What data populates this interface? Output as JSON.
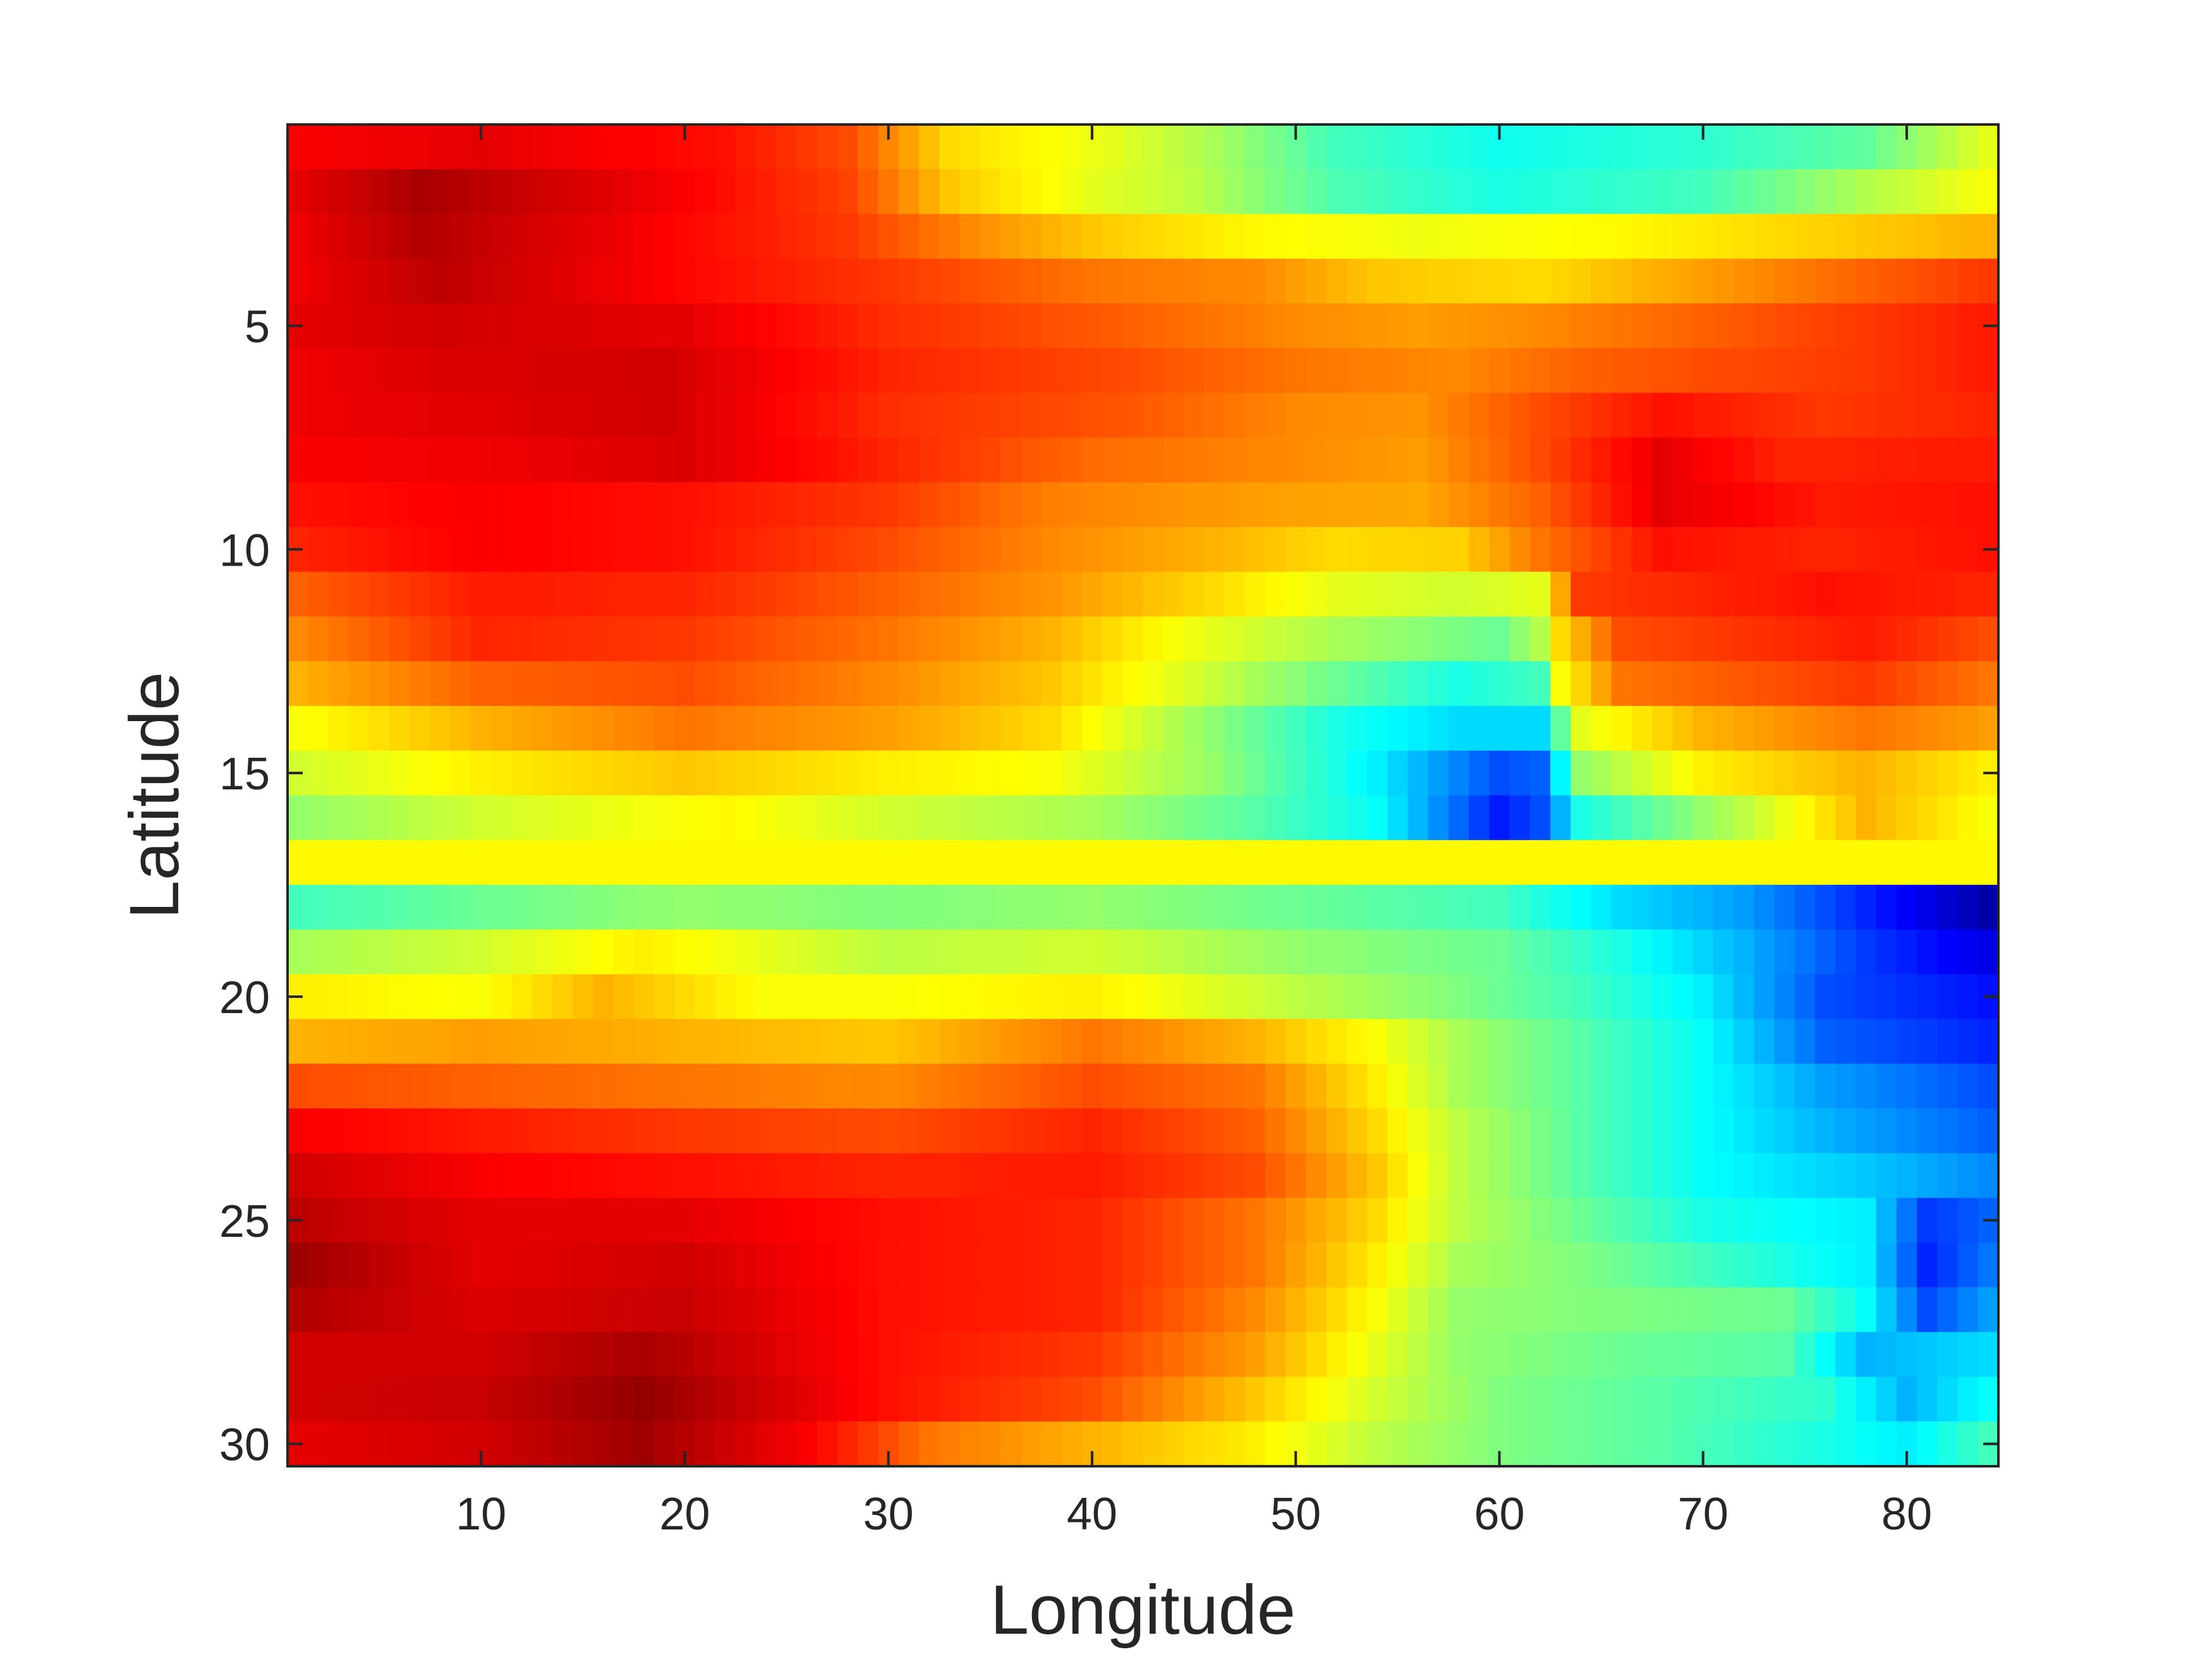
{
  "chart_data": {
    "type": "heatmap",
    "title": "",
    "xlabel": "Longitude",
    "ylabel": "Latitude",
    "x_range": [
      1,
      84
    ],
    "y_range": [
      1,
      30
    ],
    "xlim": [
      0.5,
      84.5
    ],
    "ylim": [
      0.5,
      30.5
    ],
    "y_direction": "reversed (1 at top, 30 at bottom)",
    "x_ticks": [
      10,
      20,
      30,
      40,
      50,
      60,
      70,
      80
    ],
    "y_ticks": [
      5,
      10,
      15,
      20,
      25,
      30
    ],
    "colormap": "jet",
    "value_range": [
      0,
      1
    ],
    "colorbar": false,
    "grid": false,
    "row_profiles": [
      [
        [
          1,
          0.88
        ],
        [
          10,
          0.9
        ],
        [
          22,
          0.86
        ],
        [
          28,
          0.8
        ],
        [
          33,
          0.66
        ],
        [
          41,
          0.6
        ],
        [
          46,
          0.54
        ],
        [
          52,
          0.44
        ],
        [
          60,
          0.39
        ],
        [
          70,
          0.42
        ],
        [
          78,
          0.47
        ],
        [
          84,
          0.6
        ]
      ],
      [
        [
          1,
          0.9
        ],
        [
          7,
          0.96
        ],
        [
          20,
          0.88
        ],
        [
          28,
          0.81
        ],
        [
          33,
          0.68
        ],
        [
          40,
          0.6
        ],
        [
          45,
          0.56
        ],
        [
          52,
          0.45
        ],
        [
          60,
          0.4
        ],
        [
          70,
          0.44
        ],
        [
          78,
          0.55
        ],
        [
          84,
          0.62
        ]
      ],
      [
        [
          1,
          0.89
        ],
        [
          7,
          0.95
        ],
        [
          20,
          0.87
        ],
        [
          28,
          0.82
        ],
        [
          34,
          0.74
        ],
        [
          40,
          0.68
        ],
        [
          48,
          0.63
        ],
        [
          56,
          0.61
        ],
        [
          66,
          0.63
        ],
        [
          76,
          0.67
        ],
        [
          84,
          0.7
        ]
      ],
      [
        [
          1,
          0.89
        ],
        [
          8,
          0.94
        ],
        [
          20,
          0.87
        ],
        [
          30,
          0.82
        ],
        [
          40,
          0.76
        ],
        [
          48,
          0.74
        ],
        [
          54,
          0.68
        ],
        [
          62,
          0.66
        ],
        [
          70,
          0.72
        ],
        [
          78,
          0.78
        ],
        [
          84,
          0.82
        ]
      ],
      [
        [
          1,
          0.9
        ],
        [
          8,
          0.92
        ],
        [
          20,
          0.9
        ],
        [
          30,
          0.83
        ],
        [
          40,
          0.79
        ],
        [
          50,
          0.74
        ],
        [
          56,
          0.72
        ],
        [
          62,
          0.74
        ],
        [
          70,
          0.78
        ],
        [
          78,
          0.82
        ],
        [
          84,
          0.85
        ]
      ],
      [
        [
          1,
          0.89
        ],
        [
          8,
          0.91
        ],
        [
          19,
          0.92
        ],
        [
          30,
          0.84
        ],
        [
          42,
          0.8
        ],
        [
          50,
          0.76
        ],
        [
          58,
          0.74
        ],
        [
          64,
          0.78
        ],
        [
          70,
          0.8
        ],
        [
          78,
          0.82
        ],
        [
          84,
          0.85
        ]
      ],
      [
        [
          1,
          0.89
        ],
        [
          8,
          0.9
        ],
        [
          19,
          0.92
        ],
        [
          30,
          0.83
        ],
        [
          42,
          0.79
        ],
        [
          50,
          0.74
        ],
        [
          56,
          0.73
        ],
        [
          62,
          0.8
        ],
        [
          68,
          0.86
        ],
        [
          76,
          0.82
        ],
        [
          84,
          0.84
        ]
      ],
      [
        [
          1,
          0.88
        ],
        [
          10,
          0.89
        ],
        [
          20,
          0.91
        ],
        [
          30,
          0.84
        ],
        [
          40,
          0.77
        ],
        [
          50,
          0.74
        ],
        [
          56,
          0.72
        ],
        [
          62,
          0.8
        ],
        [
          68,
          0.9
        ],
        [
          74,
          0.84
        ],
        [
          84,
          0.85
        ]
      ],
      [
        [
          1,
          0.86
        ],
        [
          10,
          0.88
        ],
        [
          20,
          0.86
        ],
        [
          30,
          0.82
        ],
        [
          38,
          0.75
        ],
        [
          48,
          0.72
        ],
        [
          56,
          0.71
        ],
        [
          62,
          0.78
        ],
        [
          68,
          0.9
        ],
        [
          76,
          0.85
        ],
        [
          84,
          0.86
        ]
      ],
      [
        [
          1,
          0.84
        ],
        [
          10,
          0.88
        ],
        [
          20,
          0.86
        ],
        [
          30,
          0.8
        ],
        [
          38,
          0.74
        ],
        [
          46,
          0.7
        ],
        [
          52,
          0.66
        ],
        [
          58,
          0.67
        ],
        [
          62,
          0.76
        ],
        [
          68,
          0.86
        ],
        [
          76,
          0.84
        ],
        [
          84,
          0.86
        ]
      ],
      [
        [
          1,
          0.78
        ],
        [
          10,
          0.85
        ],
        [
          20,
          0.84
        ],
        [
          30,
          0.78
        ],
        [
          38,
          0.73
        ],
        [
          46,
          0.66
        ],
        [
          52,
          0.6
        ],
        [
          58,
          0.58
        ],
        [
          62,
          0.6
        ],
        [
          64,
          0.82
        ],
        [
          76,
          0.86
        ],
        [
          84,
          0.84
        ]
      ],
      [
        [
          1,
          0.74
        ],
        [
          10,
          0.84
        ],
        [
          20,
          0.82
        ],
        [
          30,
          0.76
        ],
        [
          38,
          0.7
        ],
        [
          44,
          0.62
        ],
        [
          52,
          0.54
        ],
        [
          60,
          0.48
        ],
        [
          62,
          0.55
        ],
        [
          63,
          0.66
        ],
        [
          66,
          0.8
        ],
        [
          78,
          0.85
        ],
        [
          84,
          0.8
        ]
      ],
      [
        [
          1,
          0.7
        ],
        [
          10,
          0.78
        ],
        [
          20,
          0.8
        ],
        [
          30,
          0.74
        ],
        [
          38,
          0.68
        ],
        [
          44,
          0.6
        ],
        [
          52,
          0.48
        ],
        [
          58,
          0.4
        ],
        [
          62,
          0.44
        ],
        [
          63,
          0.62
        ],
        [
          66,
          0.76
        ],
        [
          78,
          0.82
        ],
        [
          84,
          0.76
        ]
      ],
      [
        [
          1,
          0.62
        ],
        [
          10,
          0.7
        ],
        [
          20,
          0.76
        ],
        [
          30,
          0.72
        ],
        [
          38,
          0.66
        ],
        [
          44,
          0.55
        ],
        [
          52,
          0.4
        ],
        [
          58,
          0.34
        ],
        [
          62,
          0.34
        ],
        [
          64,
          0.6
        ],
        [
          70,
          0.7
        ],
        [
          78,
          0.76
        ],
        [
          84,
          0.72
        ]
      ],
      [
        [
          1,
          0.58
        ],
        [
          10,
          0.64
        ],
        [
          20,
          0.68
        ],
        [
          30,
          0.64
        ],
        [
          38,
          0.62
        ],
        [
          46,
          0.52
        ],
        [
          54,
          0.36
        ],
        [
          60,
          0.2
        ],
        [
          62,
          0.22
        ],
        [
          64,
          0.52
        ],
        [
          70,
          0.64
        ],
        [
          78,
          0.7
        ],
        [
          84,
          0.64
        ]
      ],
      [
        [
          1,
          0.52
        ],
        [
          10,
          0.58
        ],
        [
          22,
          0.63
        ],
        [
          30,
          0.58
        ],
        [
          40,
          0.54
        ],
        [
          48,
          0.46
        ],
        [
          54,
          0.38
        ],
        [
          60,
          0.15
        ],
        [
          62,
          0.2
        ],
        [
          64,
          0.4
        ],
        [
          72,
          0.56
        ],
        [
          78,
          0.7
        ],
        [
          84,
          0.62
        ]
      ],
      [
        [
          1,
          0.63
        ],
        [
          84,
          0.63
        ]
      ],
      [
        [
          1,
          0.44
        ],
        [
          10,
          0.48
        ],
        [
          20,
          0.52
        ],
        [
          30,
          0.5
        ],
        [
          40,
          0.52
        ],
        [
          50,
          0.48
        ],
        [
          60,
          0.44
        ],
        [
          66,
          0.34
        ],
        [
          72,
          0.28
        ],
        [
          78,
          0.16
        ],
        [
          84,
          0.04
        ]
      ],
      [
        [
          1,
          0.54
        ],
        [
          10,
          0.58
        ],
        [
          18,
          0.64
        ],
        [
          30,
          0.56
        ],
        [
          40,
          0.58
        ],
        [
          50,
          0.52
        ],
        [
          60,
          0.48
        ],
        [
          66,
          0.4
        ],
        [
          72,
          0.3
        ],
        [
          78,
          0.18
        ],
        [
          84,
          0.1
        ]
      ],
      [
        [
          1,
          0.64
        ],
        [
          10,
          0.62
        ],
        [
          16,
          0.7
        ],
        [
          24,
          0.62
        ],
        [
          30,
          0.62
        ],
        [
          40,
          0.64
        ],
        [
          50,
          0.56
        ],
        [
          58,
          0.5
        ],
        [
          64,
          0.44
        ],
        [
          70,
          0.36
        ],
        [
          76,
          0.2
        ],
        [
          84,
          0.14
        ]
      ],
      [
        [
          1,
          0.7
        ],
        [
          10,
          0.72
        ],
        [
          20,
          0.7
        ],
        [
          30,
          0.68
        ],
        [
          40,
          0.76
        ],
        [
          48,
          0.7
        ],
        [
          54,
          0.62
        ],
        [
          58,
          0.54
        ],
        [
          64,
          0.46
        ],
        [
          70,
          0.38
        ],
        [
          76,
          0.22
        ],
        [
          84,
          0.16
        ]
      ],
      [
        [
          1,
          0.8
        ],
        [
          10,
          0.78
        ],
        [
          20,
          0.76
        ],
        [
          30,
          0.74
        ],
        [
          40,
          0.8
        ],
        [
          48,
          0.76
        ],
        [
          54,
          0.64
        ],
        [
          58,
          0.54
        ],
        [
          64,
          0.46
        ],
        [
          70,
          0.38
        ],
        [
          76,
          0.28
        ],
        [
          84,
          0.2
        ]
      ],
      [
        [
          1,
          0.88
        ],
        [
          10,
          0.85
        ],
        [
          20,
          0.82
        ],
        [
          30,
          0.8
        ],
        [
          40,
          0.84
        ],
        [
          48,
          0.78
        ],
        [
          54,
          0.66
        ],
        [
          58,
          0.56
        ],
        [
          64,
          0.46
        ],
        [
          70,
          0.38
        ],
        [
          76,
          0.3
        ],
        [
          84,
          0.22
        ]
      ],
      [
        [
          1,
          0.92
        ],
        [
          10,
          0.88
        ],
        [
          20,
          0.86
        ],
        [
          30,
          0.84
        ],
        [
          40,
          0.85
        ],
        [
          48,
          0.8
        ],
        [
          54,
          0.68
        ],
        [
          58,
          0.56
        ],
        [
          64,
          0.46
        ],
        [
          70,
          0.38
        ],
        [
          78,
          0.32
        ],
        [
          84,
          0.26
        ]
      ],
      [
        [
          1,
          0.94
        ],
        [
          10,
          0.9
        ],
        [
          20,
          0.9
        ],
        [
          30,
          0.86
        ],
        [
          40,
          0.84
        ],
        [
          48,
          0.76
        ],
        [
          54,
          0.66
        ],
        [
          58,
          0.56
        ],
        [
          64,
          0.48
        ],
        [
          70,
          0.4
        ],
        [
          78,
          0.36
        ],
        [
          81,
          0.18
        ],
        [
          84,
          0.22
        ]
      ],
      [
        [
          1,
          0.97
        ],
        [
          10,
          0.9
        ],
        [
          20,
          0.92
        ],
        [
          30,
          0.86
        ],
        [
          40,
          0.84
        ],
        [
          48,
          0.76
        ],
        [
          54,
          0.64
        ],
        [
          58,
          0.54
        ],
        [
          64,
          0.5
        ],
        [
          70,
          0.44
        ],
        [
          78,
          0.36
        ],
        [
          81,
          0.16
        ],
        [
          84,
          0.24
        ]
      ],
      [
        [
          1,
          0.95
        ],
        [
          10,
          0.91
        ],
        [
          20,
          0.93
        ],
        [
          30,
          0.86
        ],
        [
          40,
          0.84
        ],
        [
          48,
          0.74
        ],
        [
          54,
          0.62
        ],
        [
          58,
          0.52
        ],
        [
          66,
          0.5
        ],
        [
          74,
          0.48
        ],
        [
          78,
          0.38
        ],
        [
          81,
          0.2
        ],
        [
          84,
          0.28
        ]
      ],
      [
        [
          1,
          0.92
        ],
        [
          10,
          0.92
        ],
        [
          18,
          0.96
        ],
        [
          30,
          0.86
        ],
        [
          40,
          0.82
        ],
        [
          48,
          0.72
        ],
        [
          54,
          0.6
        ],
        [
          58,
          0.52
        ],
        [
          66,
          0.48
        ],
        [
          74,
          0.46
        ],
        [
          78,
          0.3
        ],
        [
          84,
          0.34
        ]
      ],
      [
        [
          1,
          0.92
        ],
        [
          10,
          0.93
        ],
        [
          18,
          0.98
        ],
        [
          30,
          0.86
        ],
        [
          40,
          0.8
        ],
        [
          48,
          0.68
        ],
        [
          54,
          0.58
        ],
        [
          60,
          0.5
        ],
        [
          68,
          0.46
        ],
        [
          76,
          0.42
        ],
        [
          80,
          0.3
        ],
        [
          84,
          0.38
        ]
      ],
      [
        [
          1,
          0.9
        ],
        [
          10,
          0.92
        ],
        [
          18,
          0.97
        ],
        [
          26,
          0.88
        ],
        [
          32,
          0.76
        ],
        [
          40,
          0.7
        ],
        [
          48,
          0.64
        ],
        [
          54,
          0.56
        ],
        [
          60,
          0.5
        ],
        [
          68,
          0.46
        ],
        [
          76,
          0.4
        ],
        [
          80,
          0.36
        ],
        [
          84,
          0.44
        ]
      ]
    ]
  }
}
